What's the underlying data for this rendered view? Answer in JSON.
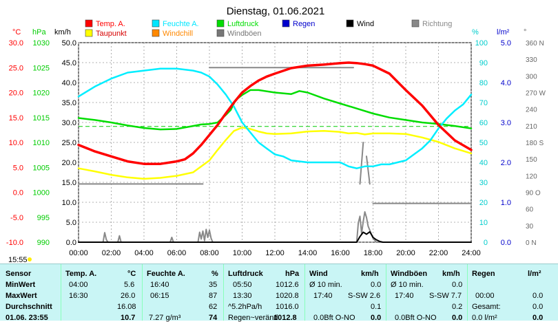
{
  "chart_data": {
    "type": "line",
    "title": "Dienstag, 01.06.2021",
    "legend": [
      {
        "name": "Temp. A.",
        "color": "#ff0000"
      },
      {
        "name": "Feuchte A.",
        "color": "#00e6ff"
      },
      {
        "name": "Luftdruck",
        "color": "#00dd00"
      },
      {
        "name": "Regen",
        "color": "#0000cc"
      },
      {
        "name": "Wind",
        "color": "#000000"
      },
      {
        "name": "Richtung",
        "color": "#888888"
      },
      {
        "name": "Taupunkt",
        "color": "#ffff00"
      },
      {
        "name": "Windchill",
        "color": "#ff8800"
      },
      {
        "name": "Windböen",
        "color": "#777777"
      }
    ],
    "axes": {
      "temp": {
        "unit": "°C",
        "color": "#ff0000",
        "ticks": [
          "30.0",
          "25.0",
          "20.0",
          "15.0",
          "10.0",
          "5.0",
          "0.0",
          "-5.0",
          "-10.0"
        ]
      },
      "pressure": {
        "unit": "hPa",
        "color": "#00cc00",
        "ticks": [
          "1030",
          "1025",
          "1020",
          "1015",
          "1010",
          "1005",
          "1000",
          "995",
          "990"
        ]
      },
      "wind": {
        "unit": "km/h",
        "color": "#000000",
        "ticks": [
          "50.0",
          "45.0",
          "40.0",
          "35.0",
          "30.0",
          "25.0",
          "20.0",
          "15.0",
          "10.0",
          "5.0",
          "0.0"
        ]
      },
      "humidity": {
        "unit": "%",
        "color": "#00cccc",
        "ticks": [
          "100",
          "90",
          "80",
          "70",
          "60",
          "50",
          "40",
          "30",
          "20",
          "10",
          "0"
        ]
      },
      "rain": {
        "unit": "l/m²",
        "color": "#0000cc",
        "ticks": [
          "5.0",
          "4.0",
          "3.0",
          "2.0",
          "1.0",
          "0.0"
        ]
      },
      "direction": {
        "unit": "°",
        "color": "#666666",
        "ticks": [
          "360 N",
          "330",
          "300",
          "270 W",
          "240",
          "210",
          "180 S",
          "150",
          "120",
          "90 O",
          "60",
          "30",
          "0 N"
        ]
      }
    },
    "x_ticks": [
      "00:00",
      "02:00",
      "04:00",
      "06:00",
      "08:00",
      "10:00",
      "12:00",
      "14:00",
      "16:00",
      "18:00",
      "20:00",
      "22:00",
      "24:00"
    ],
    "x_range": [
      0,
      24
    ],
    "series": [
      {
        "name": "Temp. A.",
        "axis": "temp",
        "color": "#ff0000",
        "width": 3.5,
        "x": [
          0,
          1,
          2,
          3,
          4,
          5,
          6,
          6.5,
          7,
          7.5,
          8,
          8.5,
          9,
          9.5,
          10,
          10.5,
          11,
          11.5,
          12,
          13,
          14,
          15,
          16,
          16.5,
          17,
          17.5,
          18,
          19,
          20,
          21,
          22,
          23,
          24
        ],
        "y": [
          9.5,
          8.2,
          7.2,
          6.2,
          5.7,
          5.7,
          6.2,
          6.6,
          7.8,
          9.5,
          11.5,
          13.5,
          15.8,
          18.0,
          20.0,
          21.3,
          22.4,
          23.2,
          23.8,
          24.9,
          25.4,
          25.6,
          25.9,
          26.0,
          25.9,
          25.7,
          25.4,
          23.8,
          20.5,
          17.4,
          13.5,
          10.4,
          8.5
        ]
      },
      {
        "name": "Feuchte A.",
        "axis": "humidity",
        "color": "#00eeff",
        "width": 2.5,
        "x": [
          0,
          1,
          2,
          3,
          4,
          5,
          6,
          7,
          7.5,
          8,
          8.5,
          9,
          9.5,
          10,
          10.5,
          11,
          11.5,
          12,
          12.5,
          13,
          14,
          15,
          16,
          16.5,
          17,
          17.5,
          18,
          18.5,
          19,
          19.5,
          20,
          20.5,
          21,
          21.5,
          22,
          22.5,
          23,
          23.5,
          24
        ],
        "y": [
          73,
          78,
          82,
          85,
          86,
          87,
          87,
          86,
          85,
          83,
          79,
          74,
          68,
          60,
          55,
          50,
          47,
          44,
          43,
          41,
          40,
          40,
          40,
          38,
          37,
          38,
          38,
          39,
          39,
          40,
          41,
          44,
          47,
          51,
          57,
          62,
          66,
          69,
          74
        ]
      },
      {
        "name": "Luftdruck",
        "axis": "pressure",
        "color": "#00dd00",
        "width": 2.5,
        "x": [
          0,
          1,
          2,
          3,
          4,
          5,
          6,
          7,
          7.5,
          8,
          8.5,
          9,
          9.3,
          9.6,
          10,
          10.5,
          11,
          12,
          13,
          13.5,
          14,
          15,
          16,
          17,
          18,
          19,
          20,
          21,
          22,
          23,
          24
        ],
        "y": [
          1014.9,
          1014.5,
          1014.0,
          1013.4,
          1012.9,
          1012.6,
          1012.7,
          1013.3,
          1013.6,
          1013.7,
          1014.0,
          1015.5,
          1016.5,
          1018.5,
          1019.5,
          1020.5,
          1020.5,
          1020.0,
          1019.7,
          1020.3,
          1020.0,
          1018.8,
          1017.8,
          1016.8,
          1015.8,
          1015.0,
          1014.5,
          1014.0,
          1013.7,
          1013.3,
          1012.8
        ]
      },
      {
        "name": "Taupunkt",
        "axis": "temp",
        "color": "#ffff00",
        "width": 2.5,
        "x": [
          0,
          1,
          2,
          3,
          4,
          5,
          6,
          7,
          8,
          8.5,
          9,
          9.5,
          10,
          10.5,
          11,
          11.5,
          12,
          13,
          14,
          15,
          16,
          16.5,
          17,
          17.5,
          18,
          19,
          20,
          21,
          22,
          23,
          24
        ],
        "y": [
          4.8,
          4.2,
          3.5,
          3.0,
          2.7,
          2.9,
          3.3,
          4.0,
          6.4,
          8.5,
          10.5,
          12.3,
          13.0,
          12.7,
          12.2,
          11.8,
          11.7,
          11.8,
          12.2,
          12.3,
          12.1,
          11.8,
          11.9,
          11.6,
          11.8,
          11.8,
          11.7,
          11.0,
          10.1,
          8.8,
          7.8
        ]
      },
      {
        "name": "Wind",
        "axis": "wind",
        "color": "#000000",
        "width": 2,
        "x": [
          0,
          17,
          17.2,
          17.4,
          17.6,
          17.8,
          18.0,
          18.2,
          18.4,
          18.6,
          24
        ],
        "y": [
          0,
          0,
          1.4,
          2.5,
          2.0,
          2.6,
          1.2,
          0.6,
          0.2,
          0,
          0
        ]
      },
      {
        "name": "Windböen",
        "axis": "wind",
        "color": "#888888",
        "width": 2,
        "x": [
          0,
          1.5,
          1.6,
          1.7,
          1.8,
          2.4,
          2.5,
          2.6,
          5.6,
          5.7,
          5.8,
          7.3,
          7.4,
          7.5,
          7.6,
          7.7,
          7.8,
          7.9,
          8.0,
          8.1,
          8.2,
          17,
          17.1,
          17.2,
          17.3,
          17.4,
          17.5,
          17.6,
          17.7,
          17.8,
          17.9,
          18.0,
          18.1,
          18.2,
          24
        ],
        "y": [
          0,
          0,
          2.4,
          0.6,
          0,
          0,
          1.6,
          0,
          0,
          1.2,
          0,
          0,
          2.5,
          0.8,
          2.8,
          0.4,
          3.2,
          1.2,
          3.0,
          1.0,
          0,
          0,
          4.8,
          6.5,
          2.2,
          5.2,
          7.6,
          6.2,
          4.0,
          3.0,
          2.0,
          1.0,
          0.5,
          0,
          0
        ]
      },
      {
        "name": "Richtung",
        "axis": "direction",
        "color": "#888888",
        "width": 2,
        "segments": true,
        "x": [
          0,
          7.6,
          null,
          8.0,
          16.8,
          null,
          17.2,
          17.4,
          null,
          17.6,
          17.8,
          null,
          18.0,
          24
        ],
        "y": [
          105,
          105,
          null,
          315,
          315,
          null,
          105,
          180,
          null,
          155,
          105,
          null,
          70,
          70
        ]
      }
    ],
    "reference_line": {
      "axis": "humidity",
      "value": 58,
      "color": "#00cc00",
      "style": "dashed"
    }
  },
  "markers": {
    "current_time": "15:55"
  },
  "table": {
    "row_labels": [
      "Sensor",
      "MinWert",
      "MaxWert",
      "Durchschnitt",
      "01.06. 23:55"
    ],
    "temp": {
      "head": "Temp. A.",
      "unit": "°C",
      "min_time": "04:00",
      "min": "5.6",
      "max_time": "16:30",
      "max": "26.0",
      "avg": "16.08",
      "cur": "10.7"
    },
    "hum": {
      "head": "Feuchte A.",
      "unit": "%",
      "min_time": "16:40",
      "min": "35",
      "max_time": "06:15",
      "max": "87",
      "avg": "62",
      "cur_extra": "7.27 g/m³",
      "cur": "74"
    },
    "press": {
      "head": "Luftdruck",
      "unit": "hPa",
      "min_time": "05:50",
      "min": "1012.6",
      "max_time": "13:30",
      "max": "1020.8",
      "avg_label": "^5.2hPa/h",
      "avg": "1016.0",
      "cur_label": "Regen~veränd.",
      "cur": "1012.8"
    },
    "wind": {
      "head": "Wind",
      "unit": "km/h",
      "min_label": "Ø 10 min.",
      "min": "0.0",
      "max_time": "17:40",
      "max_dir": "S-SW 2.6",
      "avg": "0.1",
      "cur_label": "0.0Bft O-NO",
      "cur": "0.0"
    },
    "gust": {
      "head": "Windböen",
      "unit": "km/h",
      "min_label": "Ø 10 min.",
      "min": "0.0",
      "max_time": "17:40",
      "max_dir": "S-SW 7.7",
      "avg": "0.2",
      "cur_label": "0.0Bft O-NO",
      "cur": "0.0"
    },
    "rain": {
      "head": "Regen",
      "unit": "l/m²",
      "max_time": "00:00",
      "max": "0.0",
      "avg_label": "Gesamt:",
      "avg": "0.0",
      "cur_label": "0.0 l/m²",
      "cur": "0.0"
    }
  }
}
